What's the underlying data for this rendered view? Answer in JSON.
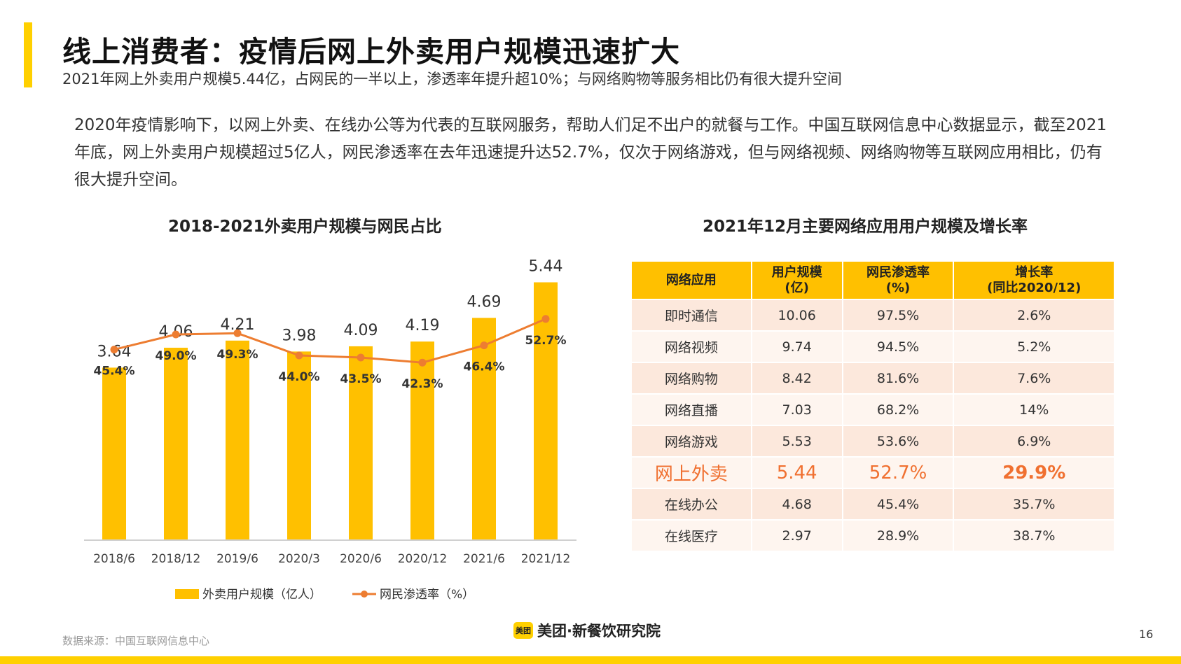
{
  "page": {
    "title": "线上消费者：疫情后网上外卖用户规模迅速扩大",
    "subtitle": "2021年网上外卖用户规模5.44亿，占网民的一半以上，渗透率年提升超10%；与网络购物等服务相比仍有很大提升空间",
    "body": "2020年疫情影响下，以网上外卖、在线办公等为代表的互联网服务，帮助人们足不出户的就餐与工作。中国互联网信息中心数据显示，截至2021年底，网上外卖用户规模超过5亿人，网民渗透率在去年迅速提升达52.7%，仅次于网络游戏，但与网络视频、网络购物等互联网应用相比，仍有很大提升空间。",
    "source": "数据来源：中国互联网信息中心",
    "logo_mark": "美团",
    "logo_text": "美团·新餐饮研究院",
    "page_number": "16",
    "colors": {
      "accent": "#FFD000",
      "bar": "#FFC000",
      "line": "#ED7D31",
      "highlight": "#F07030"
    }
  },
  "chart_data": [
    {
      "type": "bar+line",
      "title": "2018-2021外卖用户规模与网民占比",
      "categories": [
        "2018/6",
        "2018/12",
        "2019/6",
        "2020/3",
        "2020/6",
        "2020/12",
        "2021/6",
        "2021/12"
      ],
      "series": [
        {
          "name": "外卖用户规模（亿人）",
          "type": "bar",
          "values": [
            3.64,
            4.06,
            4.21,
            3.98,
            4.09,
            4.19,
            4.69,
            5.44
          ],
          "labels": [
            "3.64",
            "4.06",
            "4.21",
            "3.98",
            "4.09",
            "4.19",
            "4.69",
            "5.44"
          ]
        },
        {
          "name": "网民渗透率（%）",
          "type": "line",
          "values": [
            45.4,
            49.0,
            49.3,
            44.0,
            43.5,
            42.3,
            46.4,
            52.7
          ],
          "labels": [
            "45.4%",
            "49.0%",
            "49.3%",
            "44.0%",
            "43.5%",
            "42.3%",
            "46.4%",
            "52.7%"
          ]
        }
      ],
      "ylim_bar": [
        0,
        6.2
      ],
      "ylim_line": [
        0,
        70
      ],
      "legend": "bottom",
      "grid": false
    },
    {
      "type": "table",
      "title": "2021年12月主要网络应用用户规模及增长率",
      "columns": [
        "网络应用",
        "用户规模\n(亿)",
        "网民渗透率\n(%)",
        "增长率\n(同比2020/12)"
      ],
      "rows": [
        [
          "即时通信",
          "10.06",
          "97.5%",
          "2.6%"
        ],
        [
          "网络视频",
          "9.74",
          "94.5%",
          "5.2%"
        ],
        [
          "网络购物",
          "8.42",
          "81.6%",
          "7.6%"
        ],
        [
          "网络直播",
          "7.03",
          "68.2%",
          "14%"
        ],
        [
          "网络游戏",
          "5.53",
          "53.6%",
          "6.9%"
        ],
        [
          "网上外卖",
          "5.44",
          "52.7%",
          "29.9%"
        ],
        [
          "在线办公",
          "4.68",
          "45.4%",
          "35.7%"
        ],
        [
          "在线医疗",
          "2.97",
          "28.9%",
          "38.7%"
        ]
      ],
      "highlight_row": "网上外卖"
    }
  ]
}
